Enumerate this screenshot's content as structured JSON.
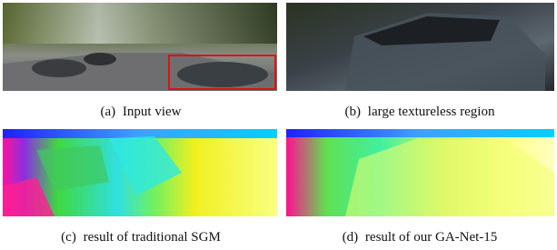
{
  "panels": [
    {
      "label": "(a)",
      "caption": "Input view"
    },
    {
      "label": "(b)",
      "caption": "large textureless region"
    },
    {
      "label": "(c)",
      "caption": "result of traditional SGM"
    },
    {
      "label": "(d)",
      "caption": "result of our GA-Net-15"
    }
  ]
}
